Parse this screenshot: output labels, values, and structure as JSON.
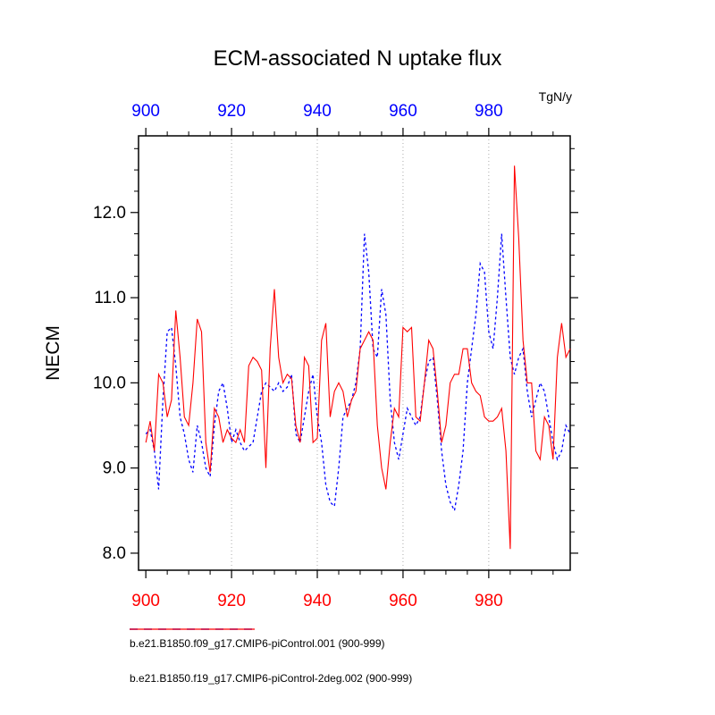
{
  "title": "ECM-associated N uptake flux",
  "units": "TgN/y",
  "chart_data": {
    "type": "line",
    "title": "ECM-associated N uptake flux",
    "ylabel": "NECM",
    "units": "TgN/y",
    "xlim": [
      898.3,
      999
    ],
    "ylim": [
      7.8,
      12.9
    ],
    "x_start": 900,
    "x_major_ticks": [
      900,
      920,
      940,
      960,
      980
    ],
    "x_minor_step": 5,
    "y_major_ticks": [
      8,
      9,
      10,
      11,
      12
    ],
    "y_minor_step": 0.25,
    "grid_x": [
      920,
      940,
      960,
      980
    ],
    "grid_color": "#aaaaaa",
    "top_axis_label_color": "#0000ff",
    "bottom_axis_label_color": "#ff0000",
    "legend_position": "bottom",
    "series": [
      {
        "name": "b.e21.B1850.f09_g17.CMIP6-piControl.001 (900-999)",
        "color": "#0000ff",
        "style": "dashed",
        "values": [
          9.4,
          9.45,
          9.2,
          8.75,
          9.8,
          10.6,
          10.65,
          10.2,
          9.6,
          9.4,
          9.1,
          8.95,
          9.5,
          9.3,
          9.0,
          8.9,
          9.5,
          9.9,
          10.0,
          9.7,
          9.3,
          9.45,
          9.3,
          9.2,
          9.25,
          9.3,
          9.6,
          9.9,
          10.0,
          9.95,
          9.9,
          10.0,
          9.9,
          9.95,
          10.1,
          9.4,
          9.3,
          9.6,
          9.9,
          10.1,
          9.6,
          9.3,
          8.8,
          8.6,
          8.55,
          9.0,
          9.6,
          9.7,
          9.8,
          10.0,
          10.4,
          11.75,
          11.3,
          10.4,
          10.3,
          11.1,
          10.8,
          9.8,
          9.3,
          9.1,
          9.4,
          9.7,
          9.6,
          9.5,
          9.6,
          10.0,
          10.25,
          10.3,
          9.8,
          9.2,
          8.8,
          8.6,
          8.5,
          8.8,
          9.2,
          10.0,
          10.4,
          10.8,
          11.4,
          11.3,
          10.6,
          10.4,
          11.0,
          11.75,
          11.0,
          10.3,
          10.1,
          10.3,
          10.4,
          9.9,
          9.6,
          9.8,
          10.0,
          9.9,
          9.6,
          9.3,
          9.1,
          9.2,
          9.5,
          9.4
        ]
      },
      {
        "name": "b.e21.B1850.f19_g17.CMIP6-piControl-2deg.002 (900-999)",
        "color": "#ff0000",
        "style": "solid",
        "values": [
          9.3,
          9.55,
          9.2,
          10.1,
          10.0,
          9.6,
          9.8,
          10.85,
          10.3,
          9.6,
          9.5,
          10.0,
          10.75,
          10.6,
          9.3,
          8.95,
          9.7,
          9.6,
          9.3,
          9.45,
          9.35,
          9.3,
          9.45,
          9.3,
          10.2,
          10.3,
          10.25,
          10.15,
          9.0,
          10.4,
          11.1,
          10.3,
          10.0,
          10.1,
          10.05,
          9.5,
          9.3,
          10.3,
          10.2,
          9.3,
          9.35,
          10.5,
          10.7,
          9.6,
          9.9,
          10.0,
          9.9,
          9.6,
          9.8,
          9.9,
          10.4,
          10.5,
          10.6,
          10.5,
          9.5,
          9.0,
          8.75,
          9.3,
          9.7,
          9.6,
          10.65,
          10.6,
          10.65,
          9.6,
          9.55,
          10.0,
          10.5,
          10.4,
          9.9,
          9.3,
          9.5,
          10.0,
          10.1,
          10.1,
          10.4,
          10.4,
          10.0,
          9.9,
          9.85,
          9.6,
          9.55,
          9.55,
          9.6,
          9.7,
          9.2,
          8.05,
          12.55,
          11.7,
          10.5,
          10.0,
          10.0,
          9.2,
          9.1,
          9.6,
          9.5,
          9.1,
          10.3,
          10.7,
          10.3,
          10.4
        ]
      }
    ]
  },
  "legend": {
    "items": [
      {
        "label": "b.e21.B1850.f09_g17.CMIP6-piControl.001 (900-999)"
      },
      {
        "label": "b.e21.B1850.f19_g17.CMIP6-piControl-2deg.002 (900-999)"
      }
    ]
  }
}
